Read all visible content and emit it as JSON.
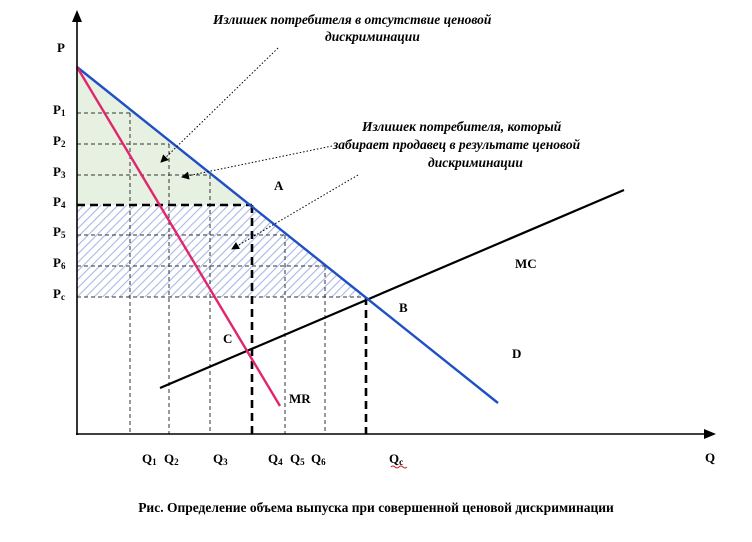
{
  "axes": {
    "y_label": "P",
    "x_label": "Q"
  },
  "price_labels": [
    {
      "main": "P",
      "sub": "1"
    },
    {
      "main": "P",
      "sub": "2"
    },
    {
      "main": "P",
      "sub": "3"
    },
    {
      "main": "P",
      "sub": "4"
    },
    {
      "main": "P",
      "sub": "5"
    },
    {
      "main": "P",
      "sub": "6"
    },
    {
      "main": "P",
      "sub": "c"
    }
  ],
  "quantity_labels": [
    {
      "main": "Q",
      "sub": "1"
    },
    {
      "main": "Q",
      "sub": "2"
    },
    {
      "main": "Q",
      "sub": "3"
    },
    {
      "main": "Q",
      "sub": "4"
    },
    {
      "main": "Q",
      "sub": "5"
    },
    {
      "main": "Q",
      "sub": "6"
    },
    {
      "main": "Q",
      "sub": "c"
    }
  ],
  "curve_labels": {
    "mc": "MC",
    "mr": "MR"
  },
  "region_labels": {
    "a": "A",
    "b": "B",
    "c": "C",
    "d": "D"
  },
  "annotations": {
    "surplus_no_discrimination": [
      "Излишек потребителя в отсутствие ценовой",
      "дискриминации"
    ],
    "surplus_taken_by_seller": [
      "Излишек потребителя, который",
      "забирает продавец в результате ценовой",
      "дискриминации"
    ]
  },
  "caption": "Рис. Определение объема выпуска при совершенной ценовой дискриминации",
  "colors": {
    "demand": "#1f4fc4",
    "mr": "#e0266e",
    "mc": "#000000",
    "green_fill": "#e6f0e0",
    "blue_hatch": "#b7c4ea"
  }
}
